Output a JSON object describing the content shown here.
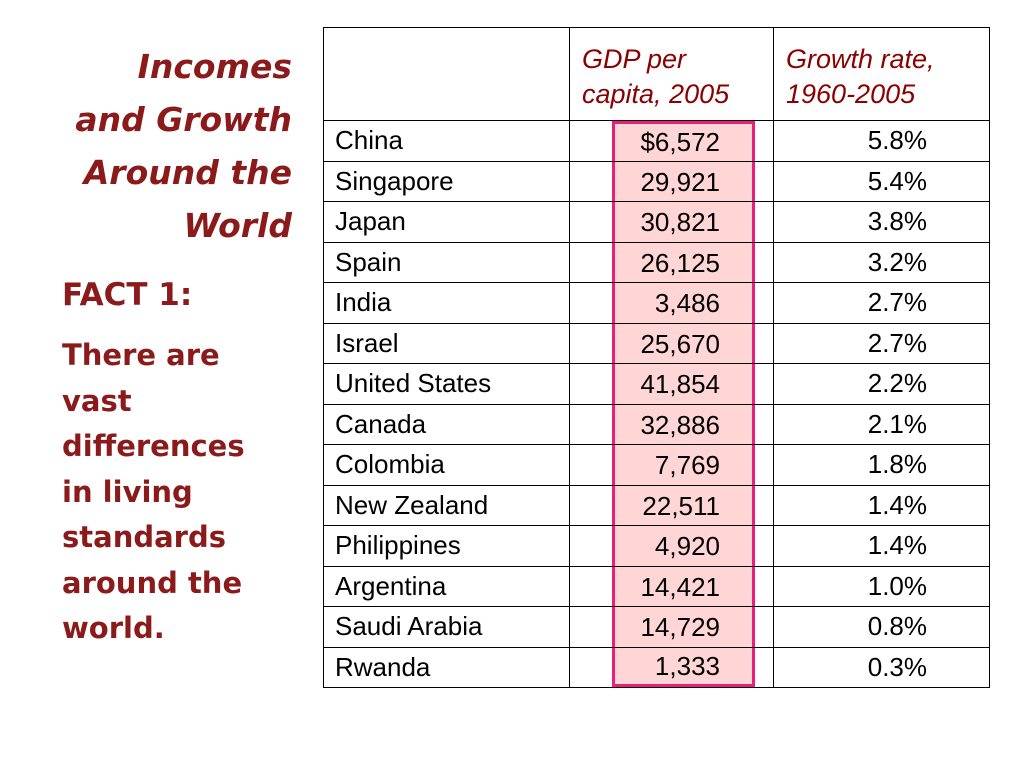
{
  "title": {
    "lines": [
      "Incomes",
      "and Growth",
      "Around the",
      "World"
    ]
  },
  "fact": {
    "heading": "FACT 1:",
    "body_lines": [
      "There are",
      "vast",
      "differences",
      "in living",
      "standards",
      "around the",
      "world."
    ]
  },
  "table": {
    "headers": [
      "",
      "GDP per capita, 2005",
      "Growth rate, 1960-2005"
    ],
    "header_lines": {
      "gdp": [
        "GDP per",
        "capita, 2005"
      ],
      "growth": [
        "Growth rate,",
        "1960-2005"
      ]
    },
    "rows": [
      {
        "country": "China",
        "gdp": "$6,572",
        "growth": "5.8%"
      },
      {
        "country": "Singapore",
        "gdp": "29,921",
        "growth": "5.4%"
      },
      {
        "country": "Japan",
        "gdp": "30,821",
        "growth": "3.8%"
      },
      {
        "country": "Spain",
        "gdp": "26,125",
        "growth": "3.2%"
      },
      {
        "country": "India",
        "gdp": "3,486",
        "growth": "2.7%"
      },
      {
        "country": "Israel",
        "gdp": "25,670",
        "growth": "2.7%"
      },
      {
        "country": "United States",
        "gdp": "41,854",
        "growth": "2.2%"
      },
      {
        "country": "Canada",
        "gdp": "32,886",
        "growth": "2.1%"
      },
      {
        "country": "Colombia",
        "gdp": "7,769",
        "growth": "1.8%"
      },
      {
        "country": "New Zealand",
        "gdp": "22,511",
        "growth": "1.4%"
      },
      {
        "country": "Philippines",
        "gdp": "4,920",
        "growth": "1.4%"
      },
      {
        "country": "Argentina",
        "gdp": "14,421",
        "growth": "1.0%"
      },
      {
        "country": "Saudi Arabia",
        "gdp": "14,729",
        "growth": "0.8%"
      },
      {
        "country": "Rwanda",
        "gdp": "1,333",
        "growth": "0.3%"
      }
    ]
  },
  "colors": {
    "title_text": "#8b1a1a",
    "header_text": "#8b0000",
    "highlight_fill": "#ffd5d5",
    "highlight_border": "#e8207c"
  }
}
